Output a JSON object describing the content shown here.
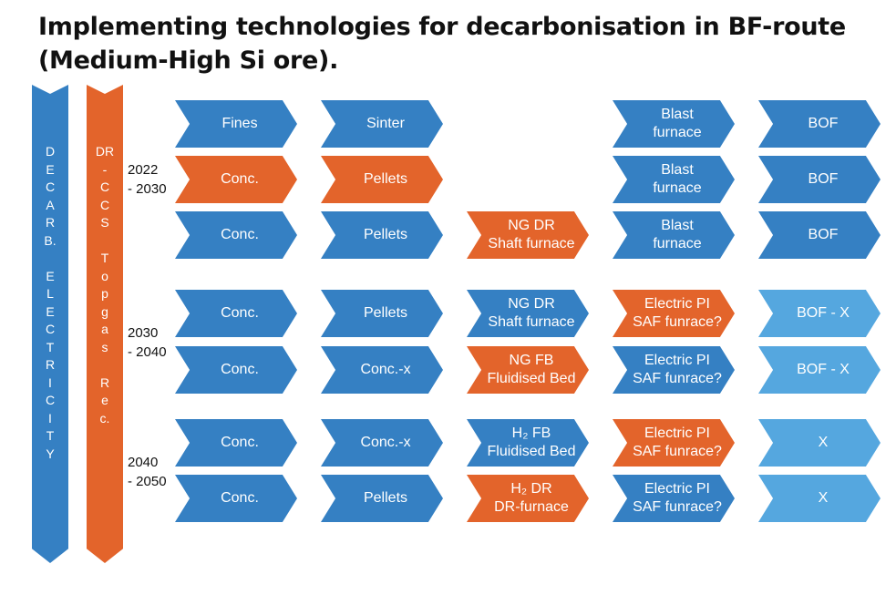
{
  "title": {
    "line1": "Implementing technologies for decarbonisation in BF-route",
    "line2": "(Medium-High Si ore)."
  },
  "side_bars": {
    "left": "D\nE\nC\nA\nR\nB.\n\nE\nL\nE\nC\nT\nR\nI\nC\nI\nT\nY",
    "right": "DR\n-\nC\nC\nS\n\nT\no\np\ng\na\ns\n\nR\ne\nc."
  },
  "periods": [
    "2022\n- 2030",
    "2030\n- 2040",
    "2040\n- 2050"
  ],
  "colors": {
    "blue": "#3580c3",
    "orange": "#e3642b",
    "light_blue": "#55a7df"
  },
  "rows": [
    {
      "cells": [
        {
          "text": "Fines",
          "color": "blue"
        },
        {
          "text": "Sinter",
          "color": "blue"
        },
        null,
        {
          "text": "Blast\nfurnace",
          "color": "blue"
        },
        {
          "text": "BOF",
          "color": "blue"
        }
      ]
    },
    {
      "cells": [
        {
          "text": "Conc.",
          "color": "orange"
        },
        {
          "text": "Pellets",
          "color": "orange"
        },
        null,
        {
          "text": "Blast\nfurnace",
          "color": "blue"
        },
        {
          "text": "BOF",
          "color": "blue"
        }
      ]
    },
    {
      "cells": [
        {
          "text": "Conc.",
          "color": "blue"
        },
        {
          "text": "Pellets",
          "color": "blue"
        },
        {
          "text": "NG DR\nShaft furnace",
          "color": "orange"
        },
        {
          "text": "Blast\nfurnace",
          "color": "blue"
        },
        {
          "text": "BOF",
          "color": "blue"
        }
      ]
    },
    {
      "cells": [
        {
          "text": "Conc.",
          "color": "blue"
        },
        {
          "text": "Pellets",
          "color": "blue"
        },
        {
          "text": "NG DR\nShaft furnace",
          "color": "blue"
        },
        {
          "text": "Electric PI\nSAF funrace?",
          "color": "orange"
        },
        {
          "text": "BOF - X",
          "color": "light_blue"
        }
      ]
    },
    {
      "cells": [
        {
          "text": "Conc.",
          "color": "blue"
        },
        {
          "text": "Conc.-x",
          "color": "blue"
        },
        {
          "text": "NG FB\nFluidised Bed",
          "color": "orange"
        },
        {
          "text": "Electric PI\nSAF funrace?",
          "color": "blue"
        },
        {
          "text": "BOF - X",
          "color": "light_blue"
        }
      ]
    },
    {
      "cells": [
        {
          "text": "Conc.",
          "color": "blue"
        },
        {
          "text": "Conc.-x",
          "color": "blue"
        },
        {
          "text": "H₂ FB\nFluidised Bed",
          "color": "blue"
        },
        {
          "text": "Electric PI\nSAF funrace?",
          "color": "orange"
        },
        {
          "text": "X",
          "color": "light_blue"
        }
      ]
    },
    {
      "cells": [
        {
          "text": "Conc.",
          "color": "blue"
        },
        {
          "text": "Pellets",
          "color": "blue"
        },
        {
          "text": "H₂ DR\nDR-furnace",
          "color": "orange"
        },
        {
          "text": "Electric PI\nSAF funrace?",
          "color": "blue"
        },
        {
          "text": "X",
          "color": "light_blue"
        }
      ]
    }
  ]
}
